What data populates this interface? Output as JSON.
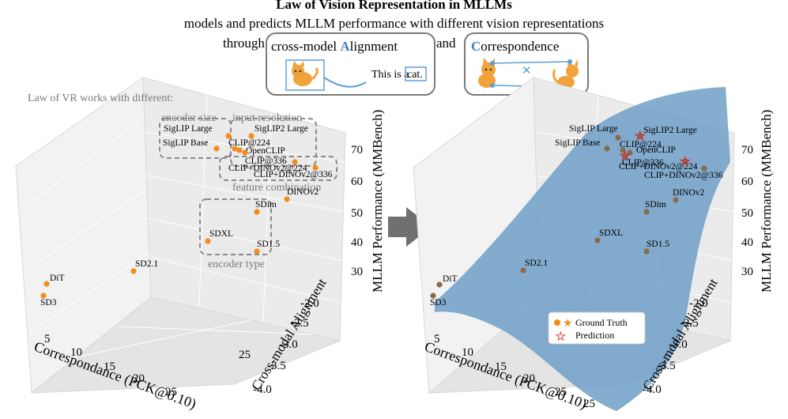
{
  "title": "Law of Vision Representation in MLLMs",
  "subtitle_line1": "models and predicts MLLM performance with different vision representations",
  "subtitle_line2": {
    "prefix": "through",
    "box1_first": "cross-model ",
    "box1_letter": "A",
    "box1_rest": "lignment",
    "connector": "and",
    "box2_letter": "C",
    "box2_rest": "orrespondence"
  },
  "illustration": {
    "caption_prefix": "This is a ",
    "caption_word": "cat."
  },
  "colors": {
    "point": "#f28c1c",
    "surface": "#6f9fc8",
    "accent": "#3f83c0",
    "prediction": "#d62728",
    "gt_dark": "#8a6a4b"
  },
  "left_panel": {
    "note": "Law of VR works with different:",
    "groups": {
      "encoder_size": "encoder size",
      "input_resolution": "input resolution",
      "feature_combination": "feature combination",
      "encoder_type": "encoder type"
    }
  },
  "right_panel": {
    "legend": {
      "ground_truth": "Ground Truth",
      "prediction": "Prediction"
    }
  },
  "chart_data": {
    "type": "scatter3d",
    "x_label": "Correspondance (PCK@0.10)",
    "y_label": "Cross-modal Alignment",
    "z_label": "MLLM Performance (MMBench)",
    "x_ticks": [
      "5",
      "10",
      "15",
      "20",
      "25"
    ],
    "y_ticks": [
      "-2.0",
      "-2.5",
      "-3.0",
      "-3.5",
      "-4.0"
    ],
    "z_ticks": [
      "30",
      "40",
      "50",
      "60",
      "70"
    ],
    "points": [
      {
        "label": "SigLIP Large"
      },
      {
        "label": "SigLIP Base"
      },
      {
        "label": "SigLIP2 Large"
      },
      {
        "label": "CLIP@224"
      },
      {
        "label": "OpenCLIP"
      },
      {
        "label": "CLIP@336"
      },
      {
        "label": "CLIP+DINOv2@224"
      },
      {
        "label": "CLIP+DINOv2@336"
      },
      {
        "label": "DINOv2"
      },
      {
        "label": "SDim"
      },
      {
        "label": "SDXL"
      },
      {
        "label": "SD1.5"
      },
      {
        "label": "SD2.1"
      },
      {
        "label": "DiT"
      },
      {
        "label": "SD3"
      }
    ],
    "predicted": [
      "SigLIP2 Large",
      "CLIP@336",
      "CLIP+DINOv2@224"
    ]
  }
}
